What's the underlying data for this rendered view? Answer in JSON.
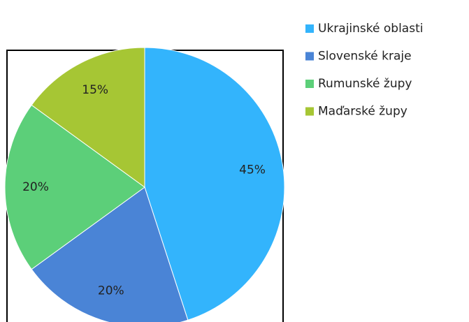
{
  "chart_data": {
    "type": "pie",
    "categories": [
      "Ukrajinské oblasti",
      "Slovenské kraje",
      "Rumunské župy",
      "Maďarské župy"
    ],
    "values": [
      45,
      20,
      20,
      15
    ],
    "value_labels": [
      "45%",
      "20%",
      "20%",
      "15%"
    ],
    "colors": [
      "#33b4fc",
      "#4a84d6",
      "#5ccf79",
      "#a6c634"
    ],
    "legend": "right"
  }
}
